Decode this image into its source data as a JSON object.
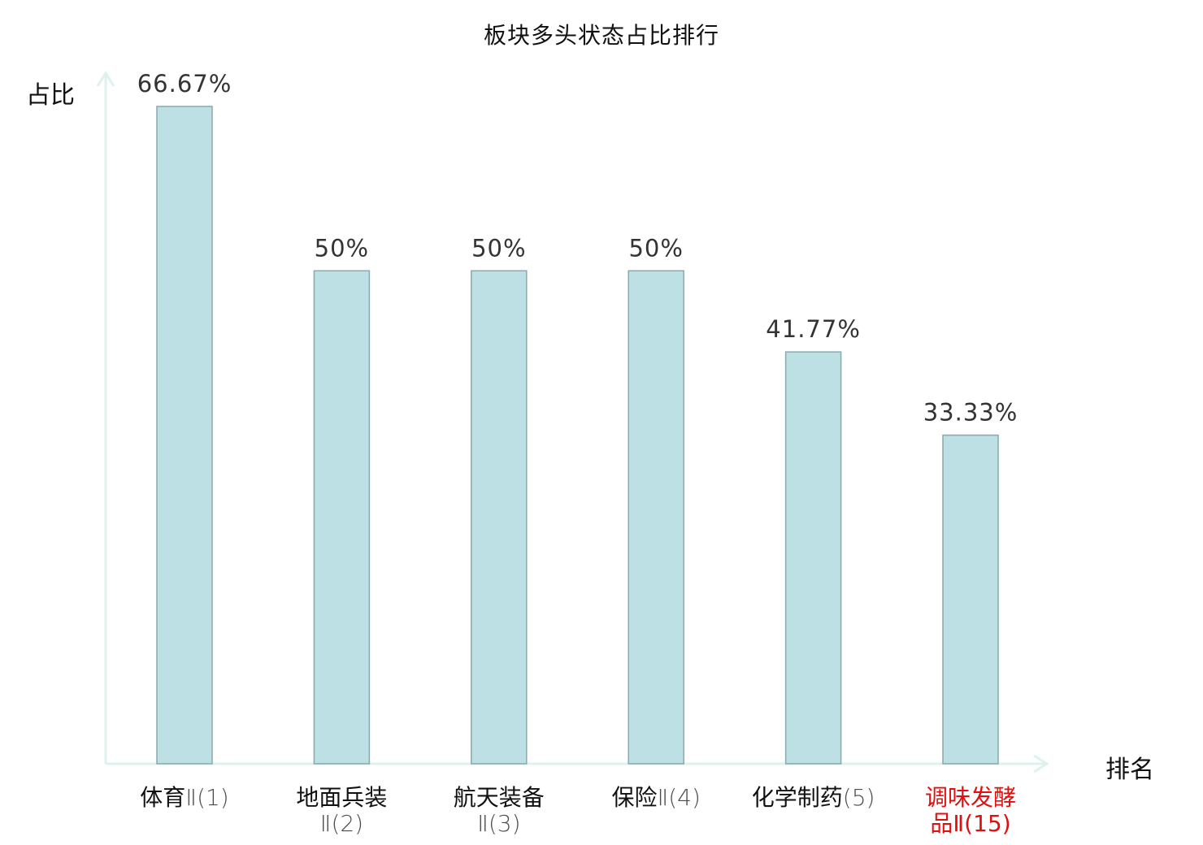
{
  "title": "板块多头状态占比排行",
  "colors": {
    "bar_fill": "#bce0e3",
    "bar_stroke": "#8aa9ab",
    "axis": "#ddf1ee",
    "label_text": "#111111",
    "value_text": "#333333",
    "highlight": "#e01010"
  },
  "chart_data": {
    "type": "bar",
    "title": "板块多头状态占比排行",
    "ylabel": "占比",
    "xlabel": "排名",
    "categories": [
      {
        "lines": [
          [
            "体育",
            ""
          ],
          [
            "Ⅱ(1)",
            "num"
          ]
        ],
        "highlight": false
      },
      {
        "lines": [
          [
            "地面兵装",
            ""
          ],
          [
            "Ⅱ(2)",
            "num"
          ]
        ],
        "highlight": false
      },
      {
        "lines": [
          [
            "航天装备",
            ""
          ],
          [
            "Ⅱ(3)",
            "num"
          ]
        ],
        "highlight": false
      },
      {
        "lines": [
          [
            "保险",
            ""
          ],
          [
            "Ⅱ(4)",
            "num"
          ]
        ],
        "highlight": false
      },
      {
        "lines": [
          [
            "化学制药",
            ""
          ],
          [
            "(5)",
            "num"
          ]
        ],
        "highlight": false
      },
      {
        "lines": [
          [
            "调味发酵",
            ""
          ],
          [
            "品Ⅱ(15)",
            ""
          ]
        ],
        "highlight": true
      }
    ],
    "values": [
      66.67,
      50,
      50,
      50,
      41.77,
      33.33
    ],
    "value_labels": [
      "66.67%",
      "50%",
      "50%",
      "50%",
      "41.77%",
      "33.33%"
    ],
    "ylim": [
      0,
      66.67
    ],
    "grid": false,
    "legend": "none"
  }
}
